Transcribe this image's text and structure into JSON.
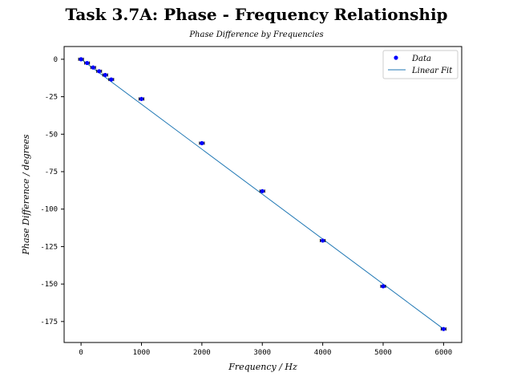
{
  "chart_data": {
    "type": "scatter",
    "title": "Task 3.7A: Phase - Frequency Relationship",
    "subtitle": "Phase Difference by Frequencies",
    "xlabel": "Frequency / Hz",
    "ylabel": "Phase Difference / degrees",
    "xlim": [
      -280,
      6300
    ],
    "ylim": [
      -189,
      8.5
    ],
    "xticks": [
      0,
      1000,
      2000,
      3000,
      4000,
      5000,
      6000
    ],
    "yticks": [
      0,
      -25,
      -50,
      -75,
      -100,
      -125,
      -150,
      -175
    ],
    "grid": false,
    "legend_position": "top-right",
    "colors": {
      "data": "#0000ff",
      "fit": "#1f77b4"
    },
    "series": [
      {
        "name": "Data",
        "kind": "points_with_error_bars",
        "x": [
          0,
          100,
          200,
          300,
          400,
          500,
          1000,
          2000,
          3000,
          4000,
          5000,
          6000
        ],
        "y": [
          0,
          -2.5,
          -5.5,
          -8,
          -10.5,
          -13.5,
          -26.5,
          -56,
          -88,
          -121,
          -151.5,
          -180
        ],
        "xerr": [
          40,
          40,
          40,
          40,
          40,
          40,
          40,
          40,
          40,
          40,
          40,
          40
        ]
      },
      {
        "name": "Linear Fit",
        "kind": "line",
        "x": [
          0,
          6000
        ],
        "y": [
          0,
          -180
        ]
      }
    ]
  }
}
